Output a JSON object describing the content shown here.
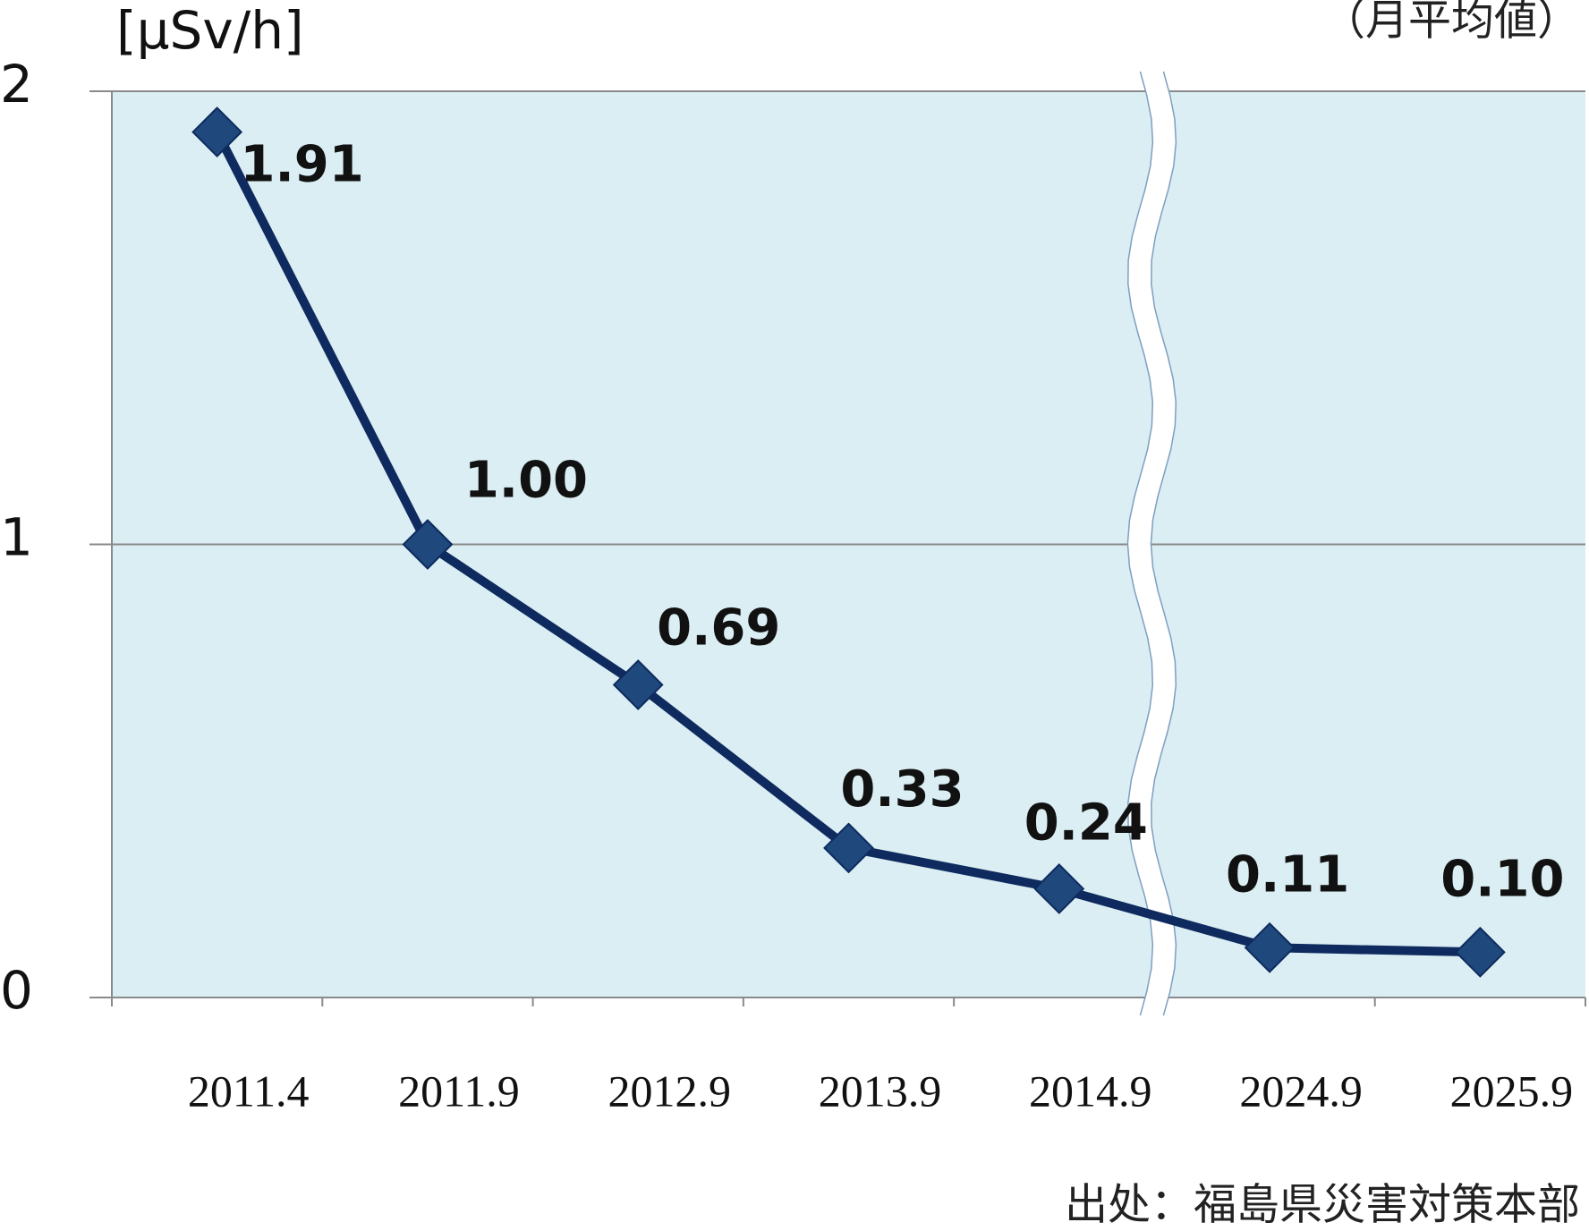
{
  "chart_data": {
    "type": "line",
    "unit_label": "[μSv/h]",
    "note": "（月平均値）",
    "source": "出处：福島県災害対策本部",
    "categories": [
      "2011.4",
      "2011.9",
      "2012.9",
      "2013.9",
      "2014.9",
      "2024.9",
      "2025.9"
    ],
    "values": [
      1.91,
      1.0,
      0.69,
      0.33,
      0.24,
      0.11,
      0.1
    ],
    "value_labels": [
      "1.91",
      "1.00",
      "0.69",
      "0.33",
      "0.24",
      "0.11",
      "0.10"
    ],
    "color": "#0e2a5e",
    "marker_color": "#1f497d",
    "background": "#daeef3",
    "ylim": [
      0,
      2
    ],
    "yticks": [
      0,
      1,
      2
    ],
    "grid": true
  }
}
